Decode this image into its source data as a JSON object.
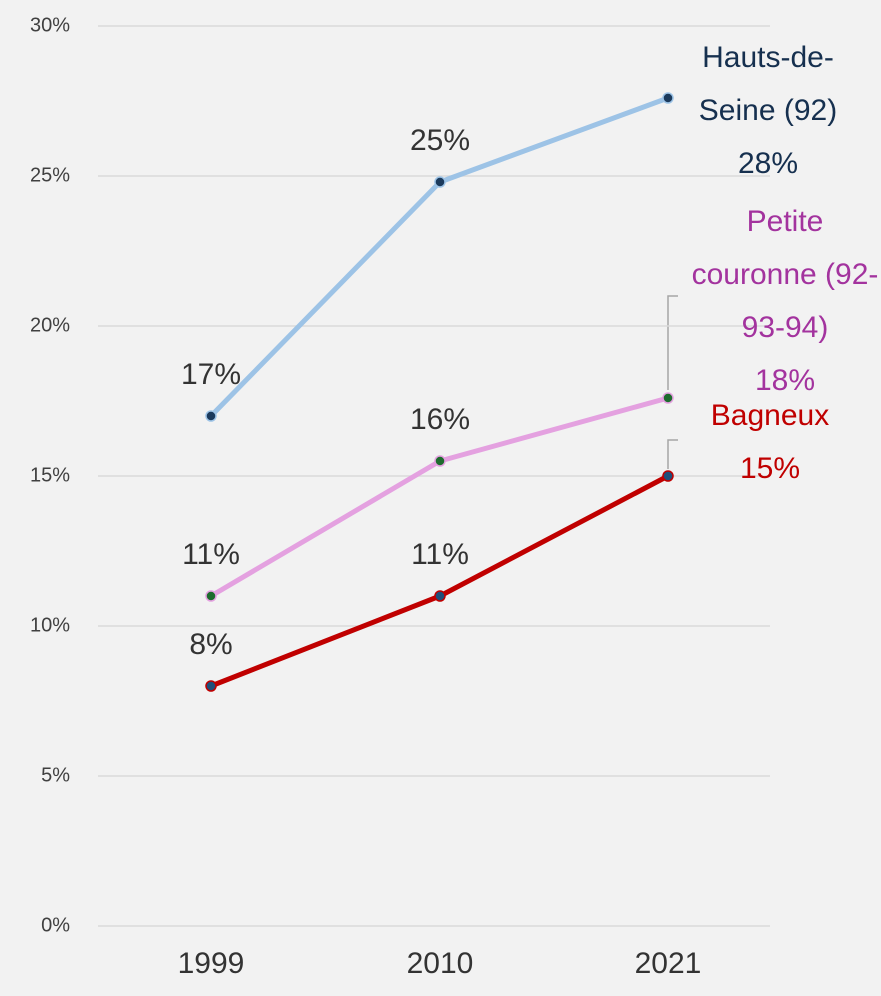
{
  "chart_data": {
    "type": "line",
    "categories": [
      "1999",
      "2010",
      "2021"
    ],
    "series": [
      {
        "name": "Hauts-de-Seine (92)",
        "color": "#9dc3e6",
        "marker_color": "#1b3a5c",
        "marker_edge": "#9dc3e6",
        "label_color": "#16304f",
        "values": [
          17,
          24.8,
          27.6
        ],
        "value_labels": [
          "17%",
          "25%",
          "28%"
        ]
      },
      {
        "name": "Petite couronne (92-93-94)",
        "color": "#e4a1e0",
        "marker_color": "#1e6b2e",
        "marker_edge": "#e4a1e0",
        "label_color": "#a3339e",
        "values": [
          11,
          15.5,
          17.6
        ],
        "value_labels": [
          "11%",
          "16%",
          "18%"
        ]
      },
      {
        "name": "Bagneux",
        "color": "#c00000",
        "marker_color": "#1f4f7a",
        "marker_edge": "#c00000",
        "label_color": "#c00000",
        "values": [
          8,
          11,
          15
        ],
        "value_labels": [
          "8%",
          "11%",
          "15%"
        ]
      }
    ],
    "ylim": [
      0,
      30
    ],
    "yticks": [
      {
        "value": 0,
        "label": "0%"
      },
      {
        "value": 5,
        "label": "5%"
      },
      {
        "value": 10,
        "label": "10%"
      },
      {
        "value": 15,
        "label": "15%"
      },
      {
        "value": 20,
        "label": "20%"
      },
      {
        "value": 25,
        "label": "25%"
      },
      {
        "value": 30,
        "label": "30%"
      }
    ],
    "grid": true
  }
}
